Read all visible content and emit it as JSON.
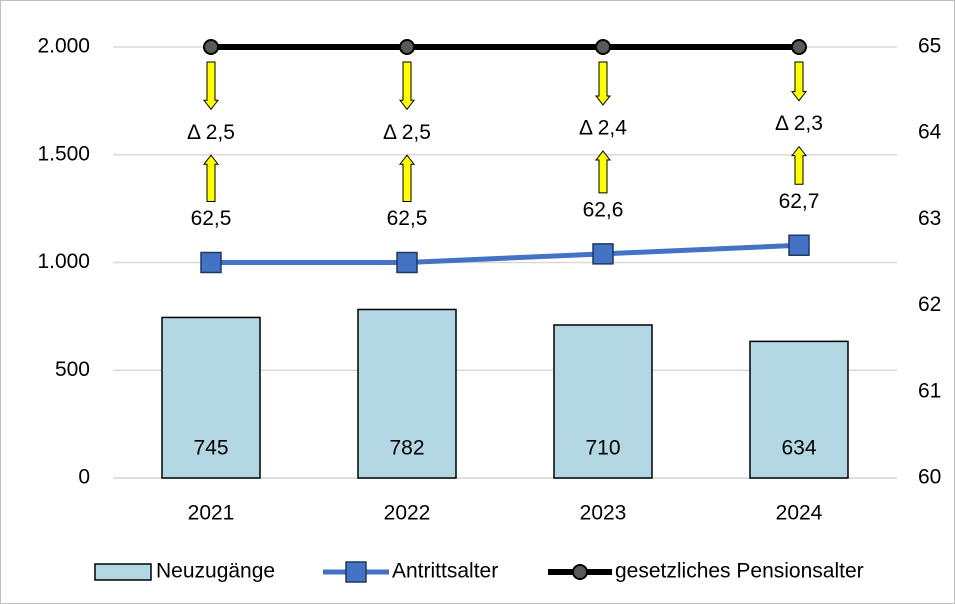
{
  "chart_data": {
    "type": "combo",
    "categories": [
      "2021",
      "2022",
      "2023",
      "2024"
    ],
    "series": [
      {
        "name": "Neuzugänge",
        "type": "bar",
        "color": "#b4d7e4",
        "values": [
          745,
          782,
          710,
          634
        ]
      },
      {
        "name": "Antrittsalter",
        "type": "line",
        "axis": "y2",
        "color": "#4472c4",
        "values": [
          62.5,
          62.5,
          62.6,
          62.7
        ],
        "value_labels": [
          "62,5",
          "62,5",
          "62,6",
          "62,7"
        ]
      },
      {
        "name": "gesetzliches Pensionsalter",
        "type": "line",
        "axis": "y2",
        "color": "#000000",
        "values": [
          65,
          65,
          65,
          65
        ]
      }
    ],
    "annotations": [
      "Δ 2,5",
      "Δ 2,5",
      "Δ 2,4",
      "Δ 2,3"
    ],
    "ylim": [
      0,
      2000
    ],
    "yticks": [
      0,
      500,
      {
        "value": 1000,
        "label": "1.000"
      },
      {
        "value": 1500,
        "label": "1.500"
      },
      {
        "value": 2000,
        "label": "2.000"
      }
    ],
    "y2lim": [
      60,
      65
    ],
    "y2ticks": [
      60,
      61,
      62,
      63,
      64,
      65
    ],
    "grid": true,
    "legend": "bottom"
  }
}
